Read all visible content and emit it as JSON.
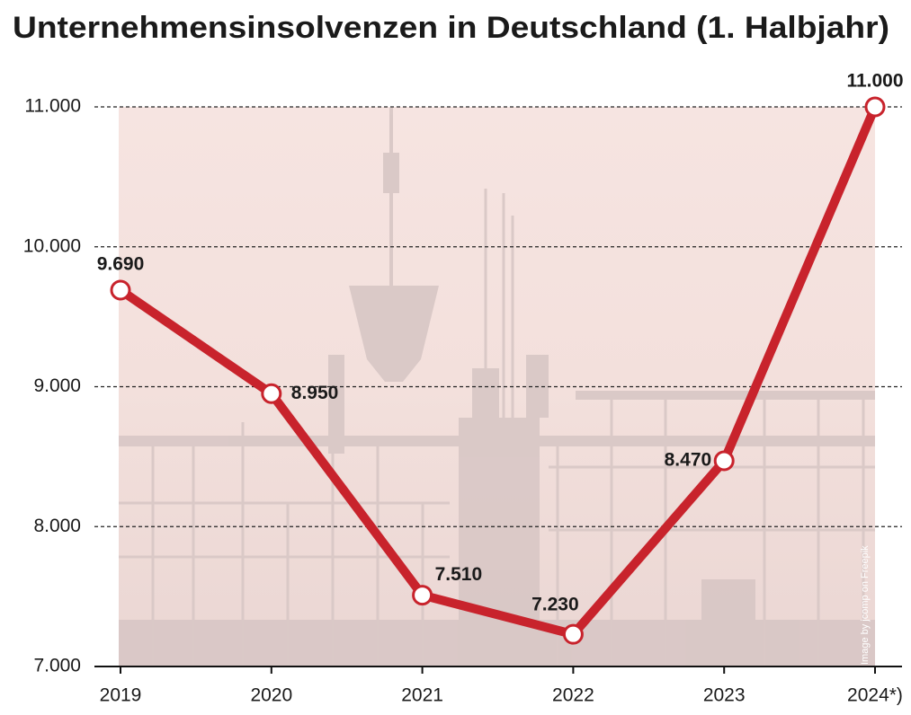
{
  "chart_data": {
    "type": "line",
    "title": "Unternehmensinsolvenzen in Deutschland (1. Halbjahr)",
    "categories": [
      "2019",
      "2020",
      "2021",
      "2022",
      "2023",
      "2024*)"
    ],
    "series": [
      {
        "name": "Unternehmensinsolvenzen",
        "color": "#c8232c",
        "values": [
          9690,
          8950,
          7510,
          7230,
          8470,
          11000
        ],
        "value_labels": [
          "9.690",
          "8.950",
          "7.510",
          "7.230",
          "8.470",
          "11.000"
        ]
      }
    ],
    "ylim": [
      7000,
      11000
    ],
    "yticks": [
      {
        "value": 7000,
        "label": "7.000"
      },
      {
        "value": 8000,
        "label": "8.000"
      },
      {
        "value": 9000,
        "label": "9.000"
      },
      {
        "value": 10000,
        "label": "10.000"
      },
      {
        "value": 11000,
        "label": "11.000"
      }
    ],
    "grid": true,
    "credit": "Image by jcomp on Freepik"
  }
}
